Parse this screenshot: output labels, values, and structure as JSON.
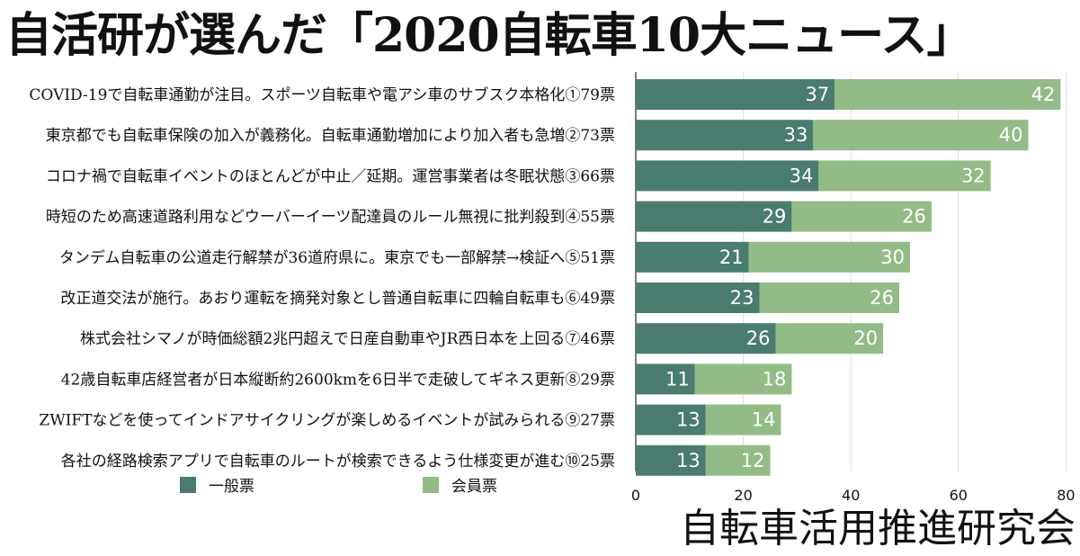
{
  "title": "自活研が選んだ「2020自転車10大ニュース」",
  "footer": "自転車活用推進研究会",
  "legend": [
    {
      "label": "一般票",
      "color": "#4a7c6f"
    },
    {
      "label": "会員票",
      "color": "#93bb86"
    }
  ],
  "chart_data": {
    "type": "bar",
    "orientation": "horizontal",
    "stacked": true,
    "categories": [
      "COVID-19で自転車通勤が注目。スポーツ自転車や電アシ車のサブスク本格化①79票",
      "東京都でも自転車保険の加入が義務化。自転車通勤増加により加入者も急増②73票",
      "コロナ禍で自転車イベントのほとんどが中止／延期。運営事業者は冬眠状態③66票",
      "時短のため高速道路利用などウーバーイーツ配達員のルール無視に批判殺到④55票",
      "タンデム自転車の公道走行解禁が36道府県に。東京でも一部解禁→検証へ⑤51票",
      "改正道交法が施行。あおり運転を摘発対象とし普通自転車に四輪自転車も⑥49票",
      "株式会社シマノが時価総額2兆円超えで日産自動車やJR西日本を上回る⑦46票",
      "42歳自転車店経営者が日本縦断約2600kmを6日半で走破してギネス更新⑧29票",
      "ZWIFTなどを使ってインドアサイクリングが楽しめるイベントが試みられる⑨27票",
      "各社の経路検索アプリで自転車のルートが検索できるよう仕様変更が進む⑩25票"
    ],
    "series": [
      {
        "name": "一般票",
        "values": [
          37,
          33,
          34,
          29,
          21,
          23,
          26,
          11,
          13,
          13
        ],
        "color": "#4a7c6f"
      },
      {
        "name": "会員票",
        "values": [
          42,
          40,
          32,
          26,
          30,
          26,
          20,
          18,
          14,
          12
        ],
        "color": "#93bb86"
      }
    ],
    "xlim": [
      0,
      80
    ],
    "xticks": [
      0,
      20,
      40,
      60,
      80
    ],
    "grid": true,
    "legend_position": "bottom-left"
  }
}
